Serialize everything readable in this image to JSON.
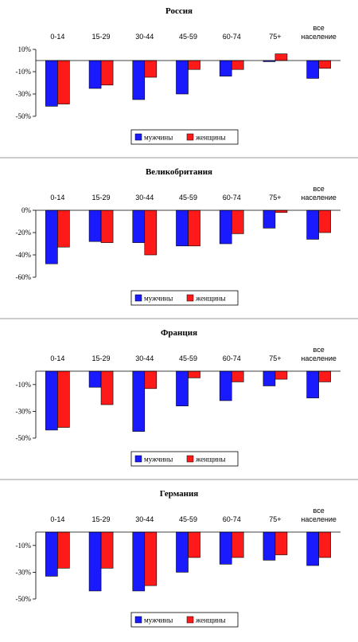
{
  "chart_data": [
    {
      "type": "bar",
      "title": "Россия",
      "categories": [
        [
          "0-14"
        ],
        [
          "15-29"
        ],
        [
          "30-44"
        ],
        [
          "45-59"
        ],
        [
          "60-74"
        ],
        [
          "75+"
        ],
        [
          "все",
          "население"
        ]
      ],
      "y_ticks": [
        "10%",
        "-10%",
        "-30%",
        "-50%"
      ],
      "ylim": [
        -50,
        10
      ],
      "series": [
        {
          "name": "мужчины",
          "color": "#1a1aff",
          "values": [
            -41,
            -25,
            -35,
            -30,
            -14,
            -1,
            -16
          ]
        },
        {
          "name": "женщины",
          "color": "#ff1a1a",
          "values": [
            -39,
            -22,
            -15,
            -8,
            -8,
            6,
            -7
          ]
        }
      ]
    },
    {
      "type": "bar",
      "title": "Великобритания",
      "categories": [
        [
          "0-14"
        ],
        [
          "15-29"
        ],
        [
          "30-44"
        ],
        [
          "45-59"
        ],
        [
          "60-74"
        ],
        [
          "75+"
        ],
        [
          "все",
          "население"
        ]
      ],
      "y_ticks": [
        "0%",
        "-20%",
        "-40%",
        "-60%"
      ],
      "ylim": [
        -60,
        0
      ],
      "series": [
        {
          "name": "мужчины",
          "color": "#1a1aff",
          "values": [
            -48,
            -28,
            -29,
            -32,
            -30,
            -16,
            -26
          ]
        },
        {
          "name": "женщины",
          "color": "#ff1a1a",
          "values": [
            -33,
            -29,
            -40,
            -32,
            -21,
            -2,
            -20
          ]
        }
      ]
    },
    {
      "type": "bar",
      "title": "Франция",
      "categories": [
        [
          "0-14"
        ],
        [
          "15-29"
        ],
        [
          "30-44"
        ],
        [
          "45-59"
        ],
        [
          "60-74"
        ],
        [
          "75+"
        ],
        [
          "все",
          "население"
        ]
      ],
      "y_ticks": [
        "-10%",
        "-30%",
        "-50%"
      ],
      "ylim": [
        -50,
        0
      ],
      "series": [
        {
          "name": "мужчины",
          "color": "#1a1aff",
          "values": [
            -44,
            -12,
            -45,
            -26,
            -22,
            -11,
            -20
          ]
        },
        {
          "name": "женщины",
          "color": "#ff1a1a",
          "values": [
            -42,
            -25,
            -13,
            -5,
            -8,
            -6,
            -8
          ]
        }
      ]
    },
    {
      "type": "bar",
      "title": "Германия",
      "categories": [
        [
          "0-14"
        ],
        [
          "15-29"
        ],
        [
          "30-44"
        ],
        [
          "45-59"
        ],
        [
          "60-74"
        ],
        [
          "75+"
        ],
        [
          "все",
          "население"
        ]
      ],
      "y_ticks": [
        "-10%",
        "-30%",
        "-50%"
      ],
      "ylim": [
        -50,
        0
      ],
      "series": [
        {
          "name": "мужчины",
          "color": "#1a1aff",
          "values": [
            -33,
            -44,
            -44,
            -30,
            -24,
            -21,
            -25
          ]
        },
        {
          "name": "женщины",
          "color": "#ff1a1a",
          "values": [
            -27,
            -27,
            -40,
            -19,
            -19,
            -17,
            -19
          ]
        }
      ]
    }
  ]
}
